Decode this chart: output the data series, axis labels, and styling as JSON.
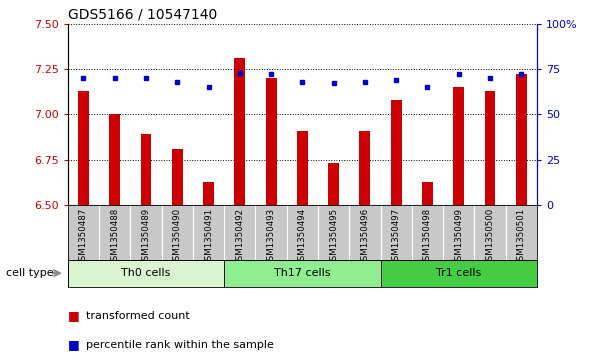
{
  "title": "GDS5166 / 10547140",
  "samples": [
    "GSM1350487",
    "GSM1350488",
    "GSM1350489",
    "GSM1350490",
    "GSM1350491",
    "GSM1350492",
    "GSM1350493",
    "GSM1350494",
    "GSM1350495",
    "GSM1350496",
    "GSM1350497",
    "GSM1350498",
    "GSM1350499",
    "GSM1350500",
    "GSM1350501"
  ],
  "bar_values": [
    7.13,
    7.0,
    6.89,
    6.81,
    6.63,
    7.31,
    7.2,
    6.91,
    6.73,
    6.91,
    7.08,
    6.63,
    7.15,
    7.13,
    7.22
  ],
  "dot_values": [
    70,
    70,
    70,
    68,
    65,
    73,
    72,
    68,
    67,
    68,
    69,
    65,
    72,
    70,
    72
  ],
  "ylim_left": [
    6.5,
    7.5
  ],
  "ylim_right": [
    0,
    100
  ],
  "yticks_left": [
    6.5,
    6.75,
    7.0,
    7.25,
    7.5
  ],
  "yticks_right": [
    0,
    25,
    50,
    75,
    100
  ],
  "ytick_labels_right": [
    "0",
    "25",
    "50",
    "75",
    "100%"
  ],
  "cell_groups": [
    {
      "label": "Th0 cells",
      "start": 0,
      "end": 4
    },
    {
      "label": "Th17 cells",
      "start": 5,
      "end": 9
    },
    {
      "label": "Tr1 cells",
      "start": 10,
      "end": 14
    }
  ],
  "group_colors": [
    "#d8f5d0",
    "#90ee90",
    "#44cc44"
  ],
  "bar_color": "#cc0000",
  "dot_color": "#0000cc",
  "bar_width": 0.35,
  "left_axis_color": "#cc0000",
  "right_axis_color": "#0000cc",
  "cell_type_label": "cell type",
  "legend_bar_label": "transformed count",
  "legend_dot_label": "percentile rank within the sample",
  "xlabels_bg_color": "#c8c8c8",
  "plot_bg_color": "#ffffff"
}
